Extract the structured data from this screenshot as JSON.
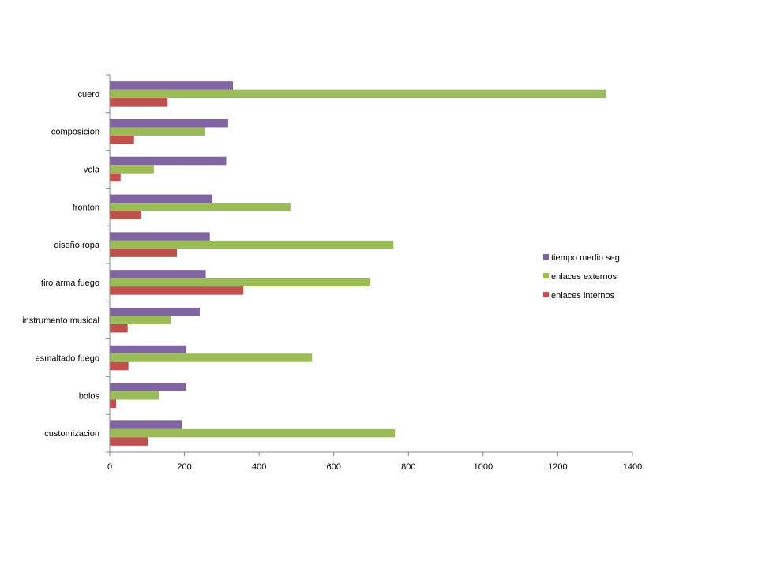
{
  "chart_data": {
    "type": "bar",
    "orientation": "horizontal",
    "title": "",
    "xlabel": "",
    "ylabel": "",
    "xlim": [
      0,
      1400
    ],
    "xticks": [
      0,
      200,
      400,
      600,
      800,
      1000,
      1200,
      1400
    ],
    "categories": [
      "cuero",
      "composicion",
      "vela",
      "fronton",
      "diseño ropa",
      "tiro arma fuego",
      "instrumento musical",
      "esmaltado fuego",
      "bolos",
      "customizacion"
    ],
    "series": [
      {
        "name": "tiempo medio seg",
        "color": "#8064a2",
        "values": [
          330,
          317,
          312,
          275,
          268,
          257,
          241,
          205,
          204,
          194
        ]
      },
      {
        "name": "enlaces externos",
        "color": "#9bbb59",
        "values": [
          1330,
          254,
          118,
          484,
          760,
          698,
          164,
          542,
          132,
          764
        ]
      },
      {
        "name": "enlaces internos",
        "color": "#c0504d",
        "values": [
          155,
          65,
          29,
          84,
          180,
          358,
          48,
          50,
          17,
          102
        ]
      }
    ],
    "grid": false,
    "legend_position": "right"
  }
}
